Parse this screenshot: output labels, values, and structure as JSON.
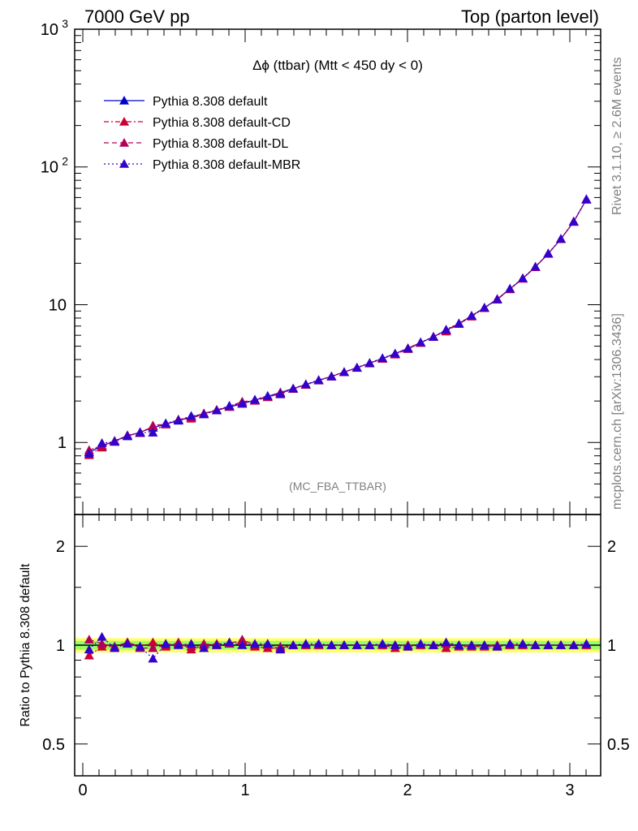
{
  "header": {
    "left": "7000 GeV pp",
    "right": "Top (parton level)"
  },
  "side_labels": {
    "rivet": "Rivet 3.1.10, ≥ 2.6M events",
    "mcplots": "mcplots.cern.ch [arXiv:1306.3436]"
  },
  "analysis_tag": "(MC_FBA_TTBAR)",
  "chart_data": [
    {
      "type": "line",
      "title": "Δϕ (ttbar) (Mtt < 450 dy < 0)",
      "xlabel": "",
      "ylabel": "",
      "yscale": "log",
      "xlim": [
        -0.05,
        3.19
      ],
      "ylim": [
        0.3,
        1000
      ],
      "grid": false,
      "legend_position": "top-left",
      "y_tick_labels": [
        "1",
        "10",
        "10^2",
        "10^3"
      ],
      "x": [
        0.039,
        0.118,
        0.196,
        0.275,
        0.353,
        0.432,
        0.511,
        0.589,
        0.668,
        0.746,
        0.825,
        0.903,
        0.982,
        1.06,
        1.139,
        1.217,
        1.296,
        1.374,
        1.453,
        1.532,
        1.61,
        1.689,
        1.767,
        1.846,
        1.924,
        2.003,
        2.081,
        2.16,
        2.238,
        2.317,
        2.395,
        2.474,
        2.553,
        2.631,
        2.71,
        2.788,
        2.867,
        2.945,
        3.024,
        3.102
      ],
      "series": [
        {
          "name": "Pythia 8.308 default",
          "color": "#0000cc",
          "linestyle": "solid",
          "values": [
            0.85,
            0.94,
            1.03,
            1.11,
            1.19,
            1.28,
            1.36,
            1.44,
            1.53,
            1.62,
            1.71,
            1.81,
            1.91,
            2.03,
            2.16,
            2.31,
            2.46,
            2.63,
            2.82,
            3.02,
            3.24,
            3.49,
            3.76,
            4.07,
            4.42,
            4.83,
            5.3,
            5.85,
            6.5,
            7.3,
            8.3,
            9.5,
            11.0,
            13.0,
            15.5,
            18.8,
            23.5,
            30.0,
            40.0,
            58.0
          ]
        },
        {
          "name": "Pythia 8.308 default-CD",
          "color": "#cc0033",
          "linestyle": "dashdot",
          "values": [
            0.81,
            0.92,
            1.02,
            1.12,
            1.18,
            1.31,
            1.35,
            1.47,
            1.49,
            1.62,
            1.73,
            1.82,
            1.96,
            2.01,
            2.13,
            2.27,
            2.45,
            2.62,
            2.83,
            3.01,
            3.25,
            3.48,
            3.75,
            4.05,
            4.35,
            4.77,
            5.28,
            5.86,
            6.4,
            7.25,
            8.2,
            9.45,
            10.9,
            12.95,
            15.45,
            18.75,
            23.4,
            29.9,
            40.2,
            58.0
          ]
        },
        {
          "name": "Pythia 8.308 default-DL",
          "color": "#b3005a",
          "linestyle": "dashed",
          "values": [
            0.88,
            0.95,
            1.02,
            1.13,
            1.17,
            1.33,
            1.36,
            1.46,
            1.52,
            1.63,
            1.71,
            1.83,
            1.98,
            2.02,
            2.15,
            2.29,
            2.47,
            2.63,
            2.83,
            3.02,
            3.24,
            3.49,
            3.77,
            4.07,
            4.41,
            4.84,
            5.31,
            5.85,
            6.55,
            7.3,
            8.3,
            9.5,
            11.0,
            13.0,
            15.5,
            18.8,
            23.5,
            30.0,
            40.0,
            58.0
          ]
        },
        {
          "name": "Pythia 8.308 default-MBR",
          "color": "#3300cc",
          "linestyle": "dotted",
          "values": [
            0.83,
            0.99,
            1.01,
            1.12,
            1.18,
            1.18,
            1.38,
            1.45,
            1.56,
            1.6,
            1.71,
            1.85,
            1.92,
            2.05,
            2.18,
            2.24,
            2.46,
            2.65,
            2.84,
            3.02,
            3.25,
            3.5,
            3.78,
            4.1,
            4.41,
            4.8,
            5.34,
            5.85,
            6.6,
            7.33,
            8.33,
            9.52,
            10.95,
            13.1,
            15.6,
            18.9,
            23.6,
            30.1,
            40.2,
            58.5
          ]
        }
      ]
    },
    {
      "type": "line",
      "title": "",
      "xlabel": "",
      "ylabel": "Ratio to Pythia 8.308 default",
      "yscale": "log",
      "xlim": [
        -0.05,
        3.19
      ],
      "ylim": [
        0.4,
        2.5
      ],
      "grid": false,
      "x_tick_labels": [
        "0",
        "1",
        "2",
        "3"
      ],
      "y_tick_labels": [
        "0.5",
        "1",
        "2"
      ],
      "band": {
        "inner_color": "#99ff66",
        "outer_color": "#ffff66",
        "inner": [
          0.97,
          1.03
        ],
        "outer": [
          0.95,
          1.05
        ]
      },
      "x": [
        0.039,
        0.118,
        0.196,
        0.275,
        0.353,
        0.432,
        0.511,
        0.589,
        0.668,
        0.746,
        0.825,
        0.903,
        0.982,
        1.06,
        1.139,
        1.217,
        1.296,
        1.374,
        1.453,
        1.532,
        1.61,
        1.689,
        1.767,
        1.846,
        1.924,
        2.003,
        2.081,
        2.16,
        2.238,
        2.317,
        2.395,
        2.474,
        2.553,
        2.631,
        2.71,
        2.788,
        2.867,
        2.945,
        3.024,
        3.102
      ],
      "series": [
        {
          "name": "Pythia 8.308 default-CD",
          "color": "#cc0033",
          "linestyle": "dashdot",
          "values": [
            0.93,
            0.99,
            0.99,
            1.02,
            0.99,
            1.02,
            0.99,
            1.02,
            0.97,
            1.0,
            1.01,
            1.01,
            1.03,
            0.99,
            0.98,
            0.98,
            1.0,
            1.0,
            1.0,
            1.0,
            1.0,
            1.0,
            1.0,
            1.0,
            0.98,
            0.99,
            1.0,
            1.0,
            0.98,
            0.99,
            0.99,
            0.99,
            0.99,
            1.0,
            1.0,
            1.0,
            1.0,
            1.0,
            1.0,
            1.0
          ]
        },
        {
          "name": "Pythia 8.308 default-DL",
          "color": "#b3005a",
          "linestyle": "dashed",
          "values": [
            1.04,
            1.01,
            0.99,
            1.02,
            0.98,
            0.98,
            1.0,
            1.01,
            0.99,
            1.01,
            1.0,
            1.01,
            1.04,
            1.0,
            1.0,
            0.99,
            1.0,
            1.0,
            1.0,
            1.0,
            1.0,
            1.0,
            1.0,
            1.0,
            1.0,
            1.0,
            1.0,
            1.0,
            1.01,
            1.0,
            1.0,
            1.0,
            1.0,
            1.0,
            1.0,
            1.0,
            1.0,
            1.0,
            1.0,
            1.0
          ]
        },
        {
          "name": "Pythia 8.308 default-MBR",
          "color": "#3300cc",
          "linestyle": "dotted",
          "values": [
            0.97,
            1.06,
            0.98,
            1.01,
            0.99,
            0.91,
            1.01,
            1.0,
            1.01,
            0.98,
            1.0,
            1.02,
            1.0,
            1.01,
            1.01,
            0.97,
            1.0,
            1.01,
            1.01,
            1.0,
            1.0,
            1.0,
            1.0,
            1.01,
            1.0,
            0.99,
            1.01,
            1.0,
            1.02,
            1.0,
            1.0,
            1.0,
            0.99,
            1.01,
            1.01,
            1.0,
            1.0,
            1.0,
            1.0,
            1.01
          ]
        }
      ]
    }
  ]
}
